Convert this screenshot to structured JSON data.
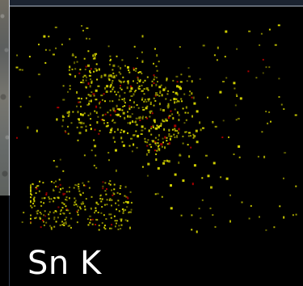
{
  "panel": {
    "element_label": "Sn K",
    "colors": {
      "background": "#000000",
      "dot_yellow": "#d9d800",
      "dot_yellow_dim": "#8e8d00",
      "dot_red": "#b00000",
      "frame_blue": "#1b2330",
      "frame_line": "#a9b3c2",
      "text": "#ffffff"
    }
  }
}
